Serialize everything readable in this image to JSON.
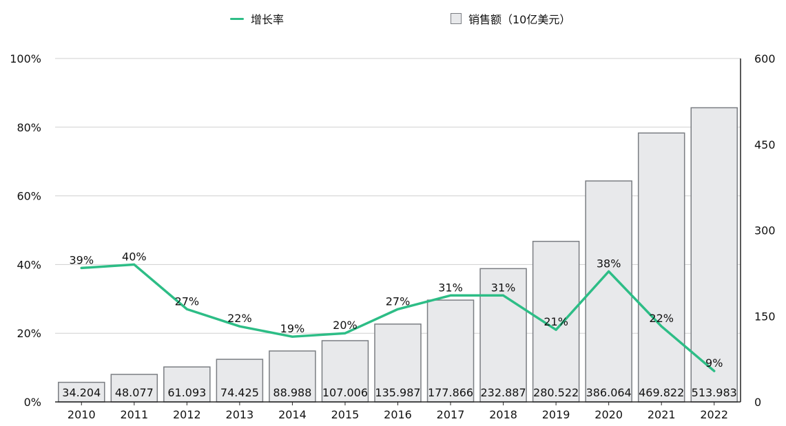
{
  "legend": {
    "growth_label": "增长率",
    "sales_label": "销售额（10亿美元）"
  },
  "colors": {
    "line": "#2dbd86",
    "bar_fill": "#e8e9eb",
    "bar_stroke": "#7a7d82",
    "grid": "#cfcfcf"
  },
  "chart_data": {
    "type": "bar",
    "categories": [
      "2010",
      "2011",
      "2012",
      "2013",
      "2014",
      "2015",
      "2016",
      "2017",
      "2018",
      "2019",
      "2020",
      "2021",
      "2022"
    ],
    "series": [
      {
        "name": "销售额（10亿美元）",
        "type": "bar",
        "axis": "right",
        "values": [
          34.204,
          48.077,
          61.093,
          74.425,
          88.988,
          107.006,
          135.987,
          177.866,
          232.887,
          280.522,
          386.064,
          469.822,
          513.983
        ],
        "labels": [
          "34.204",
          "48.077",
          "61.093",
          "74.425",
          "88.988",
          "107.006",
          "135.987",
          "177.866",
          "232.887",
          "280.522",
          "386.064",
          "469.822",
          "513.983"
        ]
      },
      {
        "name": "增长率",
        "type": "line",
        "axis": "left",
        "values": [
          39,
          40,
          27,
          22,
          19,
          20,
          27,
          31,
          31,
          21,
          38,
          22,
          9
        ],
        "labels": [
          "39%",
          "40%",
          "27%",
          "22%",
          "19%",
          "20%",
          "27%",
          "31%",
          "31%",
          "21%",
          "38%",
          "22%",
          "9%"
        ]
      }
    ],
    "y_left": {
      "min": 0,
      "max": 100,
      "ticks": [
        "0%",
        "20%",
        "40%",
        "60%",
        "80%",
        "100%"
      ]
    },
    "y_right": {
      "min": 0,
      "max": 600,
      "ticks": [
        "0",
        "150",
        "300",
        "450",
        "600"
      ]
    },
    "grid": true,
    "legend_position": "top-center"
  }
}
